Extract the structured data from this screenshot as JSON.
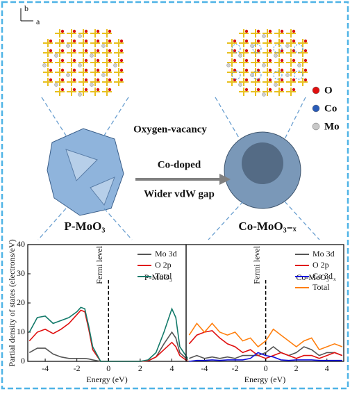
{
  "illustration": {
    "axis_b": "b",
    "axis_a": "a",
    "left_label": "P-MoO₃",
    "right_label": "Co-MoO₃₋ₓ",
    "process_top": "Oxygen-vacancy",
    "process_arrow": "Co-doped",
    "process_bottom": "Wider vdW gap",
    "atoms": [
      {
        "name": "O",
        "color": "#e01010"
      },
      {
        "name": "Co",
        "color": "#2a5cb8"
      },
      {
        "name": "Mo",
        "color": "#c8c8c8"
      }
    ]
  },
  "chart_data": [
    {
      "type": "line",
      "ylabel": "Partial density of states (electrons/eV)",
      "xlabel": "Energy (eV)",
      "panel_label": "P-MoO₃",
      "annotations": [
        {
          "text": "Fermi level",
          "x": 0
        }
      ],
      "x": [
        -5,
        -4.5,
        -4,
        -3.5,
        -3,
        -2.5,
        -2,
        -1.75,
        -1.5,
        -1.25,
        -1,
        -0.5,
        0,
        0.5,
        1,
        1.5,
        2,
        2.5,
        3,
        3.5,
        4,
        4.25,
        4.5,
        5
      ],
      "series": [
        {
          "name": "Mo 3d",
          "color": "#555555",
          "values": [
            3,
            4.5,
            4.5,
            2.5,
            1.5,
            1,
            1,
            1,
            1,
            0.8,
            0.5,
            0,
            0,
            0,
            0,
            0,
            0,
            0.2,
            1.5,
            6,
            10,
            8,
            3,
            0.5
          ]
        },
        {
          "name": "O 2p",
          "color": "#e01010",
          "values": [
            7,
            10,
            11,
            9.5,
            11,
            13,
            16,
            17.5,
            17,
            11,
            4,
            0,
            0,
            0,
            0,
            0,
            0,
            0.2,
            1.5,
            4,
            6.5,
            5,
            2,
            0
          ]
        },
        {
          "name": "Total",
          "color": "#137a6a",
          "values": [
            10,
            15,
            15.5,
            13,
            14,
            15,
            17,
            18.5,
            18,
            12,
            5,
            0,
            0,
            0,
            0,
            0,
            0,
            0.5,
            3,
            10,
            18,
            15,
            5,
            1
          ]
        }
      ],
      "xlim": [
        -5.1,
        4.9
      ],
      "ylim": [
        0,
        40
      ],
      "xticks": [
        -4,
        -2,
        0,
        2,
        4
      ],
      "yticks": [
        0,
        10,
        20,
        30,
        40
      ],
      "legend": "upper right"
    },
    {
      "type": "line",
      "xlabel": "Energy (eV)",
      "panel_label": "Co-MoO₃₋ₓ",
      "annotations": [
        {
          "text": "Fermi level",
          "x": 0
        }
      ],
      "x": [
        -5,
        -4.5,
        -4,
        -3.5,
        -3,
        -2.5,
        -2,
        -1.5,
        -1,
        -0.5,
        0,
        0.5,
        1,
        1.5,
        2,
        2.5,
        3,
        3.5,
        4,
        4.5,
        5
      ],
      "series": [
        {
          "name": "Mo 3d",
          "color": "#555555",
          "values": [
            1,
            2,
            1,
            1.5,
            1,
            1.5,
            1,
            2,
            2,
            2,
            3,
            5,
            3,
            2,
            3,
            5,
            4,
            2,
            3,
            3,
            2
          ]
        },
        {
          "name": "O 2p",
          "color": "#e01010",
          "values": [
            6,
            9,
            10,
            10.5,
            8,
            6,
            5,
            3,
            4,
            2,
            1,
            2,
            3,
            2,
            1,
            2,
            2,
            1,
            2,
            3,
            2
          ]
        },
        {
          "name": "Co 3d",
          "color": "#1010e0",
          "values": [
            0,
            0.3,
            0.3,
            0.5,
            0.3,
            0.5,
            0.5,
            0.5,
            1,
            3,
            2,
            1.5,
            0.5,
            0.3,
            0.5,
            0.5,
            0.5,
            0.3,
            0.3,
            0.3,
            0.3
          ]
        },
        {
          "name": "Total",
          "color": "#ff7f0e",
          "values": [
            9,
            13,
            10,
            13,
            10,
            9,
            10,
            7,
            8,
            5,
            7,
            11,
            9,
            7,
            5,
            7,
            8,
            4,
            5,
            6,
            5
          ]
        }
      ],
      "xlim": [
        -5.2,
        5.1
      ],
      "ylim": [
        0,
        40
      ],
      "xticks": [
        -4,
        -2,
        0,
        2,
        4
      ],
      "legend": "upper right"
    }
  ]
}
